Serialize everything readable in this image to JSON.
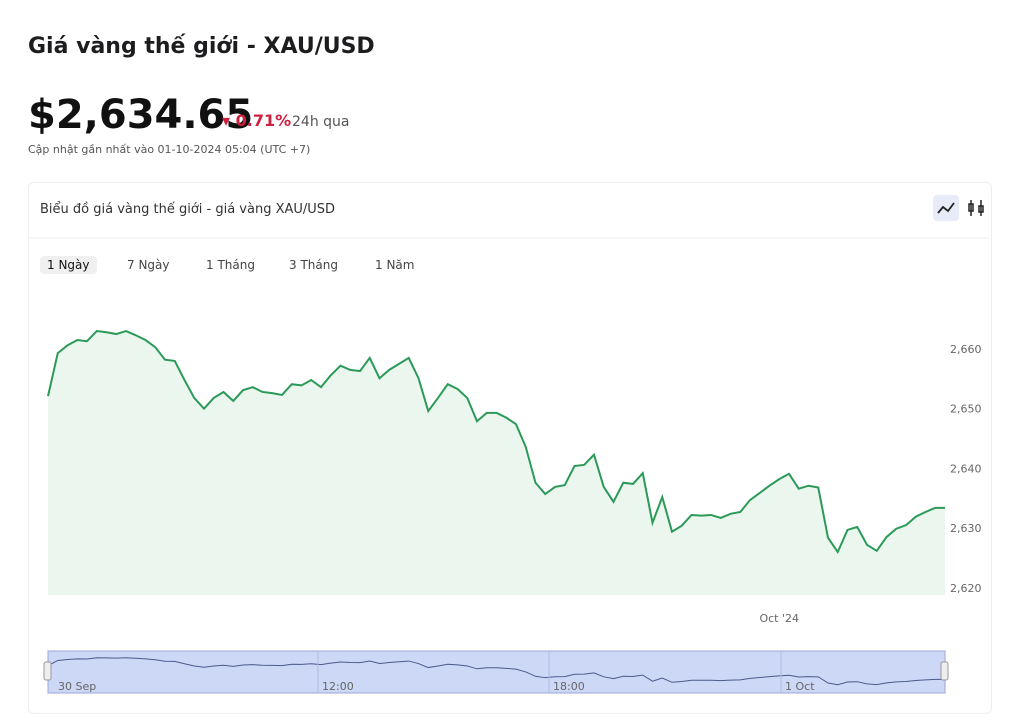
{
  "header": {
    "title": "Giá vàng thế giới - XAU/USD",
    "price": "$2,634.65",
    "change": "0.71%",
    "period": "24h qua",
    "updated": "Cập nhật gần nhất vào 01-10-2024 05:04 (UTC +7)"
  },
  "card": {
    "title": "Biểu đồ giá vàng thế giới - giá vàng XAU/USD",
    "tabs": [
      "1 Ngày",
      "7 Ngày",
      "1 Tháng",
      "3 Tháng",
      "1 Năm"
    ]
  },
  "navigator": {
    "labels": [
      "30 Sep",
      "12:00",
      "18:00",
      "1 Oct"
    ]
  },
  "chart_data": {
    "type": "line",
    "color": "#2b9a58",
    "area": true,
    "categories": [
      null,
      null,
      null,
      null,
      null,
      null,
      null,
      null,
      null,
      null,
      null,
      null,
      null,
      null,
      null,
      null,
      null,
      null,
      null,
      null,
      null,
      null,
      null,
      null,
      null,
      null,
      null,
      null,
      null,
      null,
      null,
      null,
      null,
      null,
      null,
      null,
      null,
      null,
      null,
      null,
      null,
      null,
      null,
      null,
      null,
      null,
      null,
      null,
      null,
      null,
      null,
      null,
      null,
      null,
      null,
      null,
      null,
      null,
      null,
      null,
      null,
      null,
      null,
      null,
      null,
      null,
      null,
      null,
      null,
      null,
      null,
      null,
      null,
      null,
      null,
      "Oct '24",
      null,
      null,
      null,
      null,
      null,
      null,
      null,
      null,
      null,
      null,
      null,
      null,
      null,
      null,
      null,
      null,
      null
    ],
    "values": [
      2652.1,
      2659.3,
      2660.6,
      2661.5,
      2661.3,
      2663.0,
      2662.8,
      2662.5,
      2663.0,
      2662.3,
      2661.5,
      2660.3,
      2658.2,
      2658.0,
      2654.8,
      2651.8,
      2650.0,
      2651.8,
      2652.8,
      2651.3,
      2653.1,
      2653.6,
      2652.8,
      2652.6,
      2652.3,
      2654.1,
      2653.9,
      2654.8,
      2653.6,
      2655.6,
      2657.2,
      2656.5,
      2656.3,
      2658.5,
      2655.1,
      2656.5,
      2657.5,
      2658.5,
      2655.1,
      2649.6,
      2651.8,
      2654.1,
      2653.3,
      2651.8,
      2647.9,
      2649.3,
      2649.3,
      2648.5,
      2647.4,
      2643.6,
      2637.6,
      2635.7,
      2636.9,
      2637.2,
      2640.4,
      2640.6,
      2642.3,
      2636.9,
      2634.4,
      2637.6,
      2637.4,
      2639.2,
      2630.9,
      2635.2,
      2629.4,
      2630.4,
      2632.2,
      2632.1,
      2632.2,
      2631.7,
      2632.4,
      2632.7,
      2634.7,
      2635.9,
      2637.1,
      2638.2,
      2639.1,
      2636.6,
      2637.1,
      2636.8,
      2628.4,
      2626.0,
      2629.7,
      2630.2,
      2627.2,
      2626.2,
      2628.5,
      2629.9,
      2630.5,
      2631.9,
      2632.7,
      2633.4,
      2633.4
    ],
    "ylim": [
      2618.8,
      2668.2
    ],
    "yticks": [
      {
        "value": 2620,
        "label": "2,620"
      },
      {
        "value": 2630,
        "label": "2,630"
      },
      {
        "value": 2640,
        "label": "2,640"
      },
      {
        "value": 2650,
        "label": "2,650"
      },
      {
        "value": 2660,
        "label": "2,660"
      }
    ]
  }
}
